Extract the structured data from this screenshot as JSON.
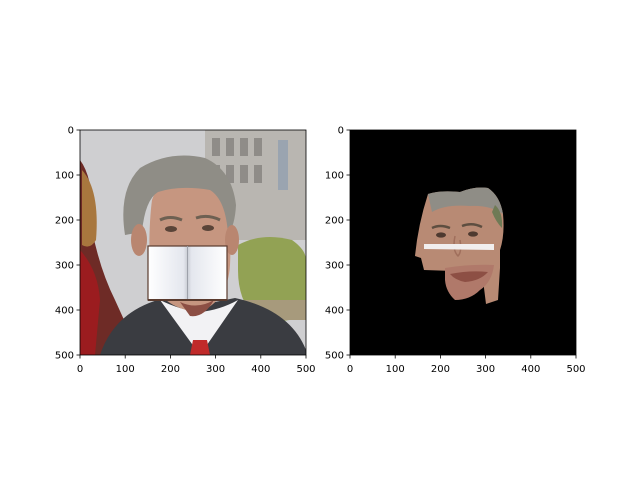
{
  "colors": {
    "figure_background": "#ffffff",
    "axes_edge": "#000000",
    "mask_background": "#000000",
    "occluder": "#f4f5f7",
    "skin": "#b88a74",
    "suit": "#3a3c41",
    "hair": "#8f8d86",
    "building": "#b9b6b1",
    "sky": "#d7d7d9",
    "foliage": "#92a254"
  },
  "chart_data": [
    {
      "type": "image",
      "title": "",
      "xlabel": "",
      "ylabel": "",
      "xlim": [
        0,
        500
      ],
      "ylim": [
        500,
        0
      ],
      "xticks": [
        0,
        100,
        200,
        300,
        400,
        500
      ],
      "yticks": [
        0,
        100,
        200,
        300,
        400,
        500
      ],
      "xtick_labels": [
        "0",
        "100",
        "200",
        "300",
        "400",
        "500"
      ],
      "ytick_labels": [
        "0",
        "100",
        "200",
        "300",
        "400",
        "500"
      ],
      "grid": false,
      "content": "photo of a man with a white rectangular occluder over the lower face",
      "occluder": {
        "x": [
          155,
          325
        ],
        "y": [
          260,
          380
        ]
      }
    },
    {
      "type": "image",
      "title": "",
      "xlabel": "",
      "ylabel": "",
      "xlim": [
        0,
        500
      ],
      "ylim": [
        500,
        0
      ],
      "xticks": [
        0,
        100,
        200,
        300,
        400,
        500
      ],
      "yticks": [
        0,
        100,
        200,
        300,
        400,
        500
      ],
      "xtick_labels": [
        "0",
        "100",
        "200",
        "300",
        "400",
        "500"
      ],
      "ytick_labels": [
        "0",
        "100",
        "200",
        "300",
        "400",
        "500"
      ],
      "grid": false,
      "content": "segmented face region on black background with occluded area removed",
      "occluder": {
        "x": [
          160,
          325
        ],
        "y": [
          260,
          380
        ]
      }
    }
  ]
}
